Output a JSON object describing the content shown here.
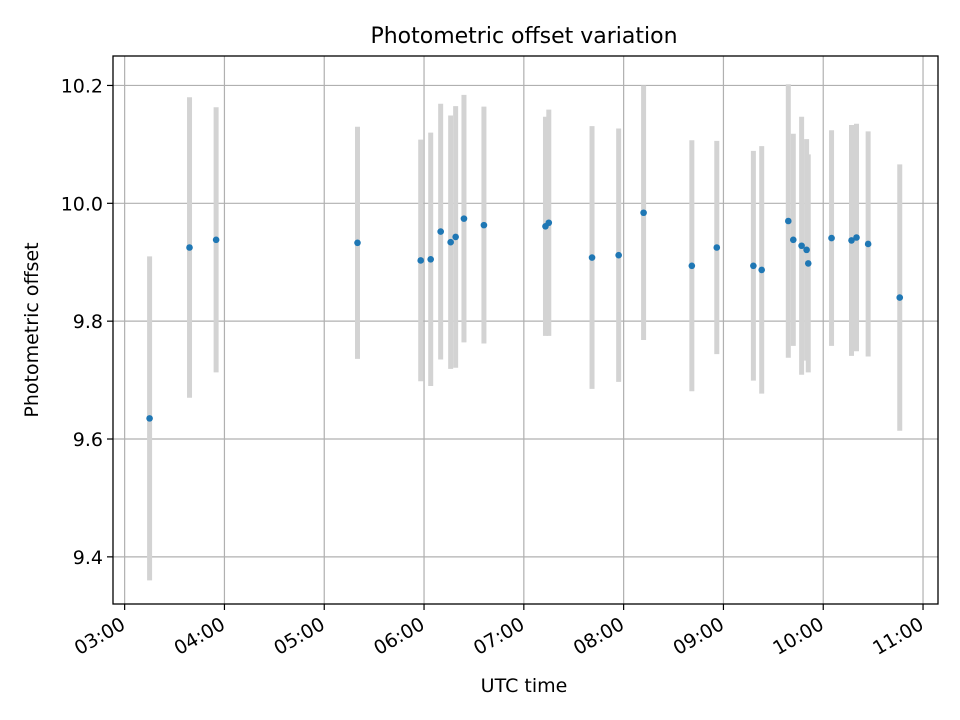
{
  "chart_data": {
    "type": "scatter",
    "title": "Photometric offset variation",
    "xlabel": "UTC time",
    "ylabel": "Photometric offset",
    "x_ticks": [
      "03:00",
      "04:00",
      "05:00",
      "06:00",
      "07:00",
      "08:00",
      "09:00",
      "10:00",
      "11:00"
    ],
    "y_ticks": [
      "9.4",
      "9.6",
      "9.8",
      "10.0",
      "10.2"
    ],
    "xlim": [
      "02:53",
      "11:09"
    ],
    "ylim": [
      9.32,
      10.25
    ],
    "grid": true,
    "marker_color": "#1f77b4",
    "errorbar_color": "#d3d3d3",
    "points": [
      {
        "t": "03:15",
        "y": 9.635,
        "err": 0.275
      },
      {
        "t": "03:39",
        "y": 9.925,
        "err": 0.255
      },
      {
        "t": "03:55",
        "y": 9.938,
        "err": 0.225
      },
      {
        "t": "05:20",
        "y": 9.933,
        "err": 0.197
      },
      {
        "t": "05:58",
        "y": 9.903,
        "err": 0.205
      },
      {
        "t": "06:04",
        "y": 9.905,
        "err": 0.215
      },
      {
        "t": "06:10",
        "y": 9.952,
        "err": 0.217
      },
      {
        "t": "06:16",
        "y": 9.934,
        "err": 0.215
      },
      {
        "t": "06:19",
        "y": 9.943,
        "err": 0.222
      },
      {
        "t": "06:24",
        "y": 9.974,
        "err": 0.21
      },
      {
        "t": "06:36",
        "y": 9.963,
        "err": 0.201
      },
      {
        "t": "07:13",
        "y": 9.961,
        "err": 0.186
      },
      {
        "t": "07:15",
        "y": 9.967,
        "err": 0.192
      },
      {
        "t": "07:41",
        "y": 9.908,
        "err": 0.223
      },
      {
        "t": "07:57",
        "y": 9.912,
        "err": 0.215
      },
      {
        "t": "08:12",
        "y": 9.984,
        "err": 0.216
      },
      {
        "t": "08:41",
        "y": 9.894,
        "err": 0.213
      },
      {
        "t": "08:56",
        "y": 9.925,
        "err": 0.181
      },
      {
        "t": "09:18",
        "y": 9.894,
        "err": 0.195
      },
      {
        "t": "09:23",
        "y": 9.887,
        "err": 0.21
      },
      {
        "t": "09:39",
        "y": 9.97,
        "err": 0.232
      },
      {
        "t": "09:42",
        "y": 9.938,
        "err": 0.18
      },
      {
        "t": "09:47",
        "y": 9.928,
        "err": 0.219
      },
      {
        "t": "09:50",
        "y": 9.921,
        "err": 0.188
      },
      {
        "t": "09:51",
        "y": 9.898,
        "err": 0.185
      },
      {
        "t": "10:05",
        "y": 9.941,
        "err": 0.183
      },
      {
        "t": "10:17",
        "y": 9.937,
        "err": 0.196
      },
      {
        "t": "10:20",
        "y": 9.942,
        "err": 0.193
      },
      {
        "t": "10:27",
        "y": 9.931,
        "err": 0.191
      },
      {
        "t": "10:46",
        "y": 9.84,
        "err": 0.226
      }
    ]
  }
}
